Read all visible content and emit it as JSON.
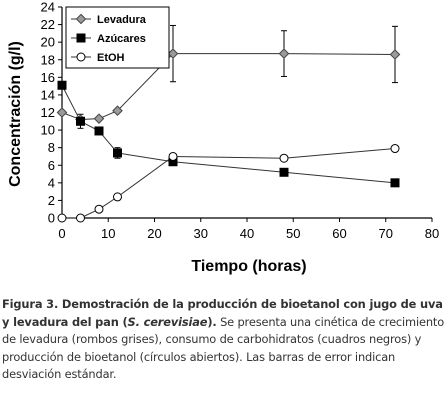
{
  "chart_data": {
    "type": "line",
    "xlabel": "Tiempo (horas)",
    "ylabel": "Concentración (g/l)",
    "xlim": [
      0,
      80
    ],
    "ylim": [
      0,
      24
    ],
    "x_ticks": [
      0,
      10,
      20,
      30,
      40,
      50,
      60,
      70,
      80
    ],
    "y_ticks": [
      0,
      2,
      4,
      6,
      8,
      10,
      12,
      14,
      16,
      18,
      20,
      22,
      24
    ],
    "x_tick_labels": [
      "0",
      "10",
      "20",
      "30",
      "40",
      "50",
      "60",
      "70",
      "80"
    ],
    "y_tick_labels": [
      "0",
      "2",
      "4",
      "6",
      "8",
      "10",
      "12",
      "14",
      "16",
      "18",
      "20",
      "22",
      "24"
    ],
    "grid": false,
    "legend_position": "top-left",
    "series": [
      {
        "name": "Levadura",
        "marker": "diamond",
        "color": "#9a9a9a",
        "x": [
          0,
          4,
          8,
          12,
          24,
          48,
          72
        ],
        "y": [
          12.0,
          11.2,
          11.3,
          12.2,
          18.7,
          18.7,
          18.6
        ],
        "err": [
          0,
          0,
          0,
          0,
          3.2,
          2.6,
          3.2
        ]
      },
      {
        "name": "Azúcares",
        "marker": "square",
        "color": "#000000",
        "x": [
          0,
          4,
          8,
          12,
          24,
          48,
          72
        ],
        "y": [
          15.1,
          11.0,
          9.9,
          7.4,
          6.4,
          5.2,
          4.0
        ],
        "err": [
          0,
          0.8,
          0,
          0.6,
          0,
          0,
          0
        ]
      },
      {
        "name": "EtOH",
        "marker": "circle",
        "color": "#ffffff",
        "x": [
          0,
          4,
          8,
          12,
          24,
          48,
          72
        ],
        "y": [
          0.0,
          0.0,
          1.0,
          2.4,
          7.0,
          6.8,
          7.9
        ],
        "err": [
          0,
          0,
          0,
          0,
          0,
          0,
          0
        ]
      }
    ]
  },
  "caption": {
    "label": "Figura 3. Demostración de la producción de bioetanol con jugo de uva y levadura del pan (S. cerevisiae).",
    "text": "Se presenta una cinética de crecimiento de levadura (rombos grises), consumo de carbohidratos (cuadros negros) y producción de bioetanol (círculos abiertos). Las barras de error indican desviación estándar."
  }
}
